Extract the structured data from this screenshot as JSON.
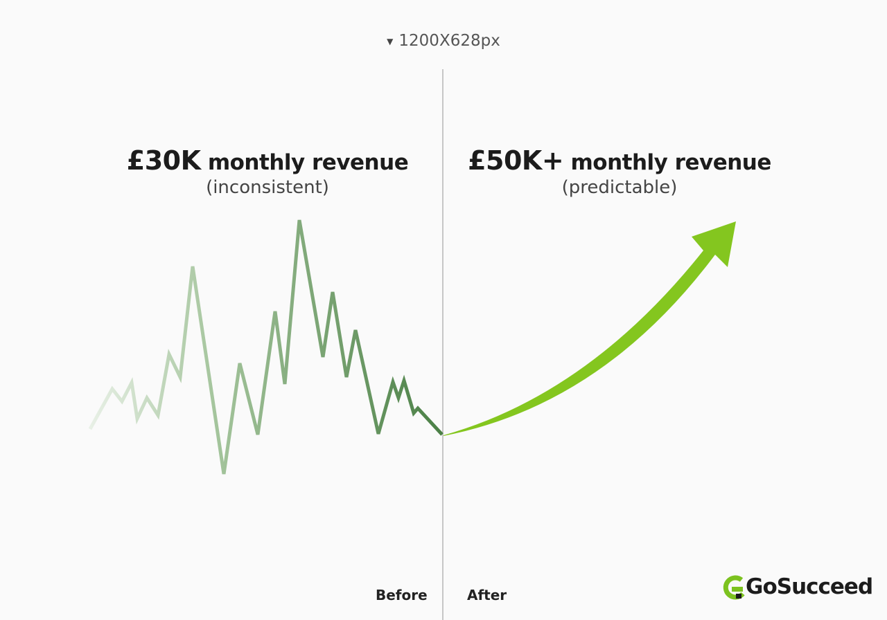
{
  "header": {
    "size": "1200X628px"
  },
  "before": {
    "amount": "£30K",
    "label": "monthly revenue",
    "note": "(inconsistent)",
    "tag": "Before"
  },
  "after": {
    "amount": "£50K+",
    "label": "monthly revenue",
    "note": "(predictable)",
    "tag": "After"
  },
  "brand": {
    "name": "GoSucceed"
  }
}
